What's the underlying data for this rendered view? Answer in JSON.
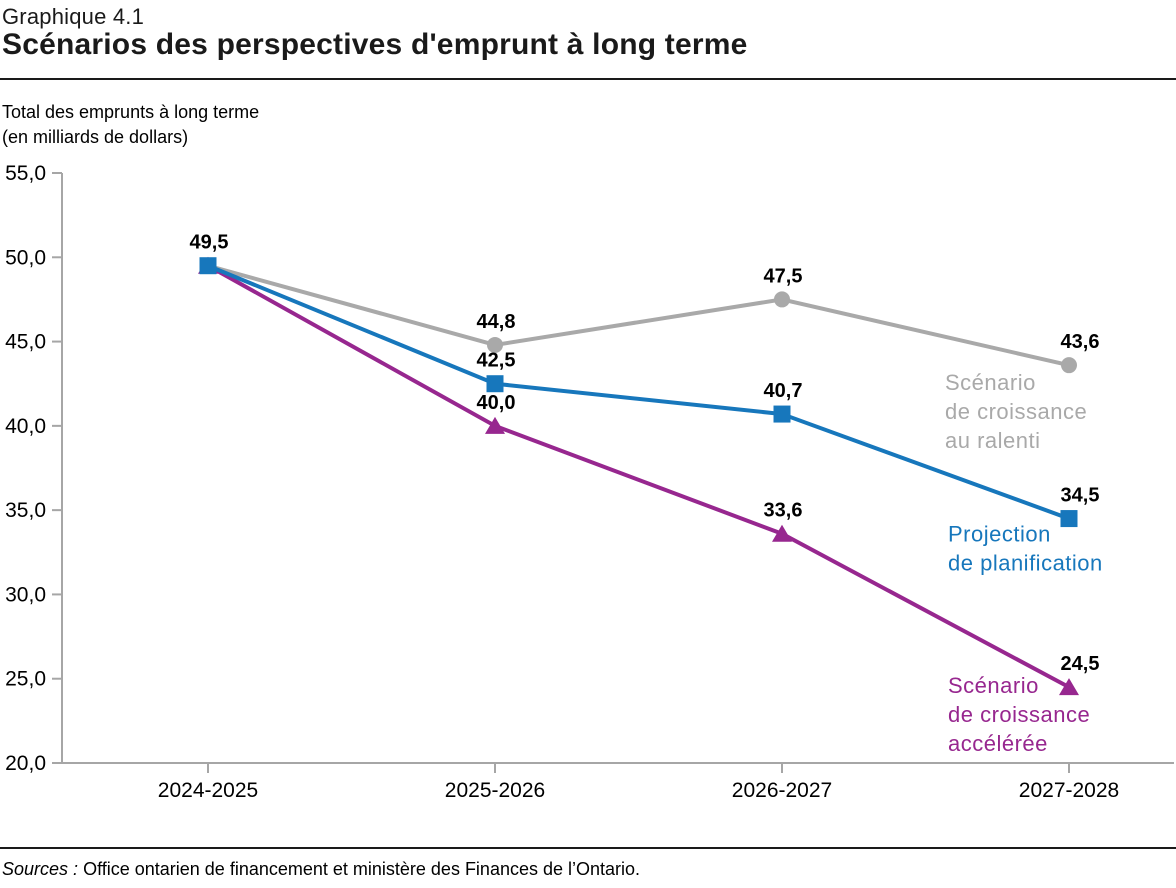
{
  "chart_data": {
    "type": "line",
    "number": "Graphique 4.1",
    "title": "Scénarios des perspectives d'emprunt à long terme",
    "ylabel_lines": [
      "Total des emprunts à long terme",
      "(en milliards de dollars)"
    ],
    "categories": [
      "2024-2025",
      "2025-2026",
      "2026-2027",
      "2027-2028"
    ],
    "series": [
      {
        "name": "Scénario de croissance au ralenti",
        "label_lines": [
          "Scénario",
          "de croissance",
          "au ralenti"
        ],
        "color": "#A9A9A9",
        "marker": "circle",
        "values": [
          49.5,
          44.8,
          47.5,
          43.6
        ]
      },
      {
        "name": "Projection de planification",
        "label_lines": [
          "Projection",
          "de planification"
        ],
        "color": "#1777BC",
        "marker": "square",
        "values": [
          49.5,
          42.5,
          40.7,
          34.5
        ]
      },
      {
        "name": "Scénario de croissance accélérée",
        "label_lines": [
          "Scénario",
          "de croissance",
          "accélérée"
        ],
        "color": "#97278F",
        "marker": "triangle",
        "values": [
          49.5,
          40.0,
          33.6,
          24.5
        ]
      }
    ],
    "ylim": [
      20.0,
      55.0
    ],
    "ytick_step": 5.0,
    "ytick_labels": [
      "20,0",
      "25,0",
      "30,0",
      "35,0",
      "40,0",
      "45,0",
      "50,0",
      "55,0"
    ],
    "decimal_separator": ",",
    "grid": false,
    "legend_position": "end-of-line colored labels",
    "axis_color": "#A6A6A6"
  },
  "source": {
    "label": "Sources :",
    "text": "Office ontarien de financement et ministère des Finances de l’Ontario."
  }
}
